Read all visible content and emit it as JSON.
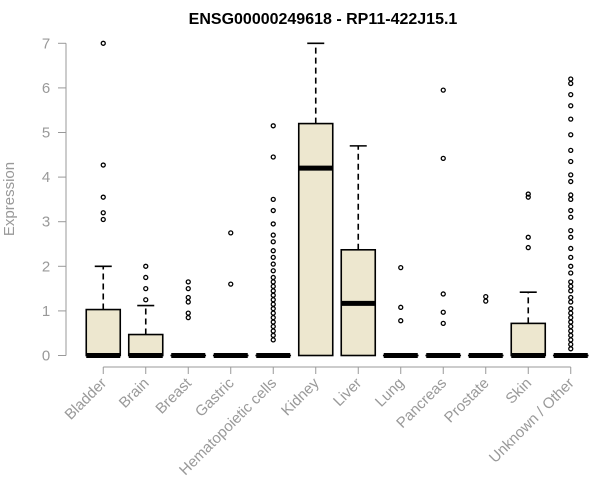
{
  "chart_data": {
    "type": "boxplot",
    "title": "ENSG00000249618 - RP11-422J15.1",
    "ylabel": "Expression",
    "xlabel": "",
    "ylim": [
      0,
      7
    ],
    "yticks": [
      0,
      1,
      2,
      3,
      4,
      5,
      6,
      7
    ],
    "grid": false,
    "colors": {
      "box_fill": "#ede7cf",
      "stroke": "#000000",
      "axis": "#999999"
    },
    "categories": [
      "Bladder",
      "Brain",
      "Breast",
      "Gastric",
      "Hematopoietic cells",
      "Kidney",
      "Liver",
      "Lung",
      "Pancreas",
      "Prostate",
      "Skin",
      "Unknown / Other"
    ],
    "boxes": [
      {
        "q1": 0,
        "median": 0,
        "q3": 1.03,
        "lower": 0,
        "upper": 2.0,
        "outliers": [
          7.0,
          4.27,
          3.55,
          3.2,
          3.05
        ]
      },
      {
        "q1": 0,
        "median": 0,
        "q3": 0.47,
        "lower": 0,
        "upper": 1.12,
        "outliers": [
          2.0,
          1.75,
          1.5,
          1.25
        ]
      },
      {
        "q1": 0,
        "median": 0,
        "q3": 0,
        "lower": 0,
        "upper": 0,
        "outliers": [
          1.65,
          1.5,
          1.3,
          1.2,
          0.95,
          0.85
        ]
      },
      {
        "q1": 0,
        "median": 0,
        "q3": 0,
        "lower": 0,
        "upper": 0,
        "outliers": [
          2.75,
          1.6
        ]
      },
      {
        "q1": 0,
        "median": 0,
        "q3": 0,
        "lower": 0,
        "upper": 0,
        "outliers": [
          5.15,
          4.45,
          3.5,
          3.25,
          2.95,
          2.7,
          2.55,
          2.35,
          2.2,
          2.05,
          1.9,
          1.75,
          1.65,
          1.55,
          1.45,
          1.35,
          1.25,
          1.15,
          1.05,
          0.95,
          0.85,
          0.75,
          0.65,
          0.55,
          0.45,
          0.35
        ]
      },
      {
        "q1": 0,
        "median": 4.2,
        "q3": 5.2,
        "lower": 0,
        "upper": 7.0,
        "outliers": []
      },
      {
        "q1": 0,
        "median": 1.17,
        "q3": 2.37,
        "lower": 0,
        "upper": 4.7,
        "outliers": []
      },
      {
        "q1": 0,
        "median": 0,
        "q3": 0,
        "lower": 0,
        "upper": 0,
        "outliers": [
          1.97,
          1.08,
          0.78
        ]
      },
      {
        "q1": 0,
        "median": 0,
        "q3": 0,
        "lower": 0,
        "upper": 0,
        "outliers": [
          5.95,
          4.42,
          1.38,
          0.97,
          0.72
        ]
      },
      {
        "q1": 0,
        "median": 0,
        "q3": 0,
        "lower": 0,
        "upper": 0,
        "outliers": [
          1.32,
          1.22
        ]
      },
      {
        "q1": 0,
        "median": 0,
        "q3": 0.72,
        "lower": 0,
        "upper": 1.42,
        "outliers": [
          3.62,
          3.55,
          2.65,
          2.42
        ]
      },
      {
        "q1": 0,
        "median": 0,
        "q3": 0,
        "lower": 0,
        "upper": 0,
        "outliers": [
          6.2,
          6.1,
          5.85,
          5.6,
          5.3,
          4.95,
          4.6,
          4.35,
          4.05,
          3.9,
          3.6,
          3.5,
          3.25,
          3.1,
          2.8,
          2.65,
          2.4,
          2.2,
          2.0,
          1.85,
          1.65,
          1.55,
          1.45,
          1.3,
          1.2,
          1.05,
          0.95,
          0.85,
          0.75,
          0.65,
          0.55,
          0.45,
          0.35,
          0.25,
          0.15
        ]
      }
    ]
  }
}
